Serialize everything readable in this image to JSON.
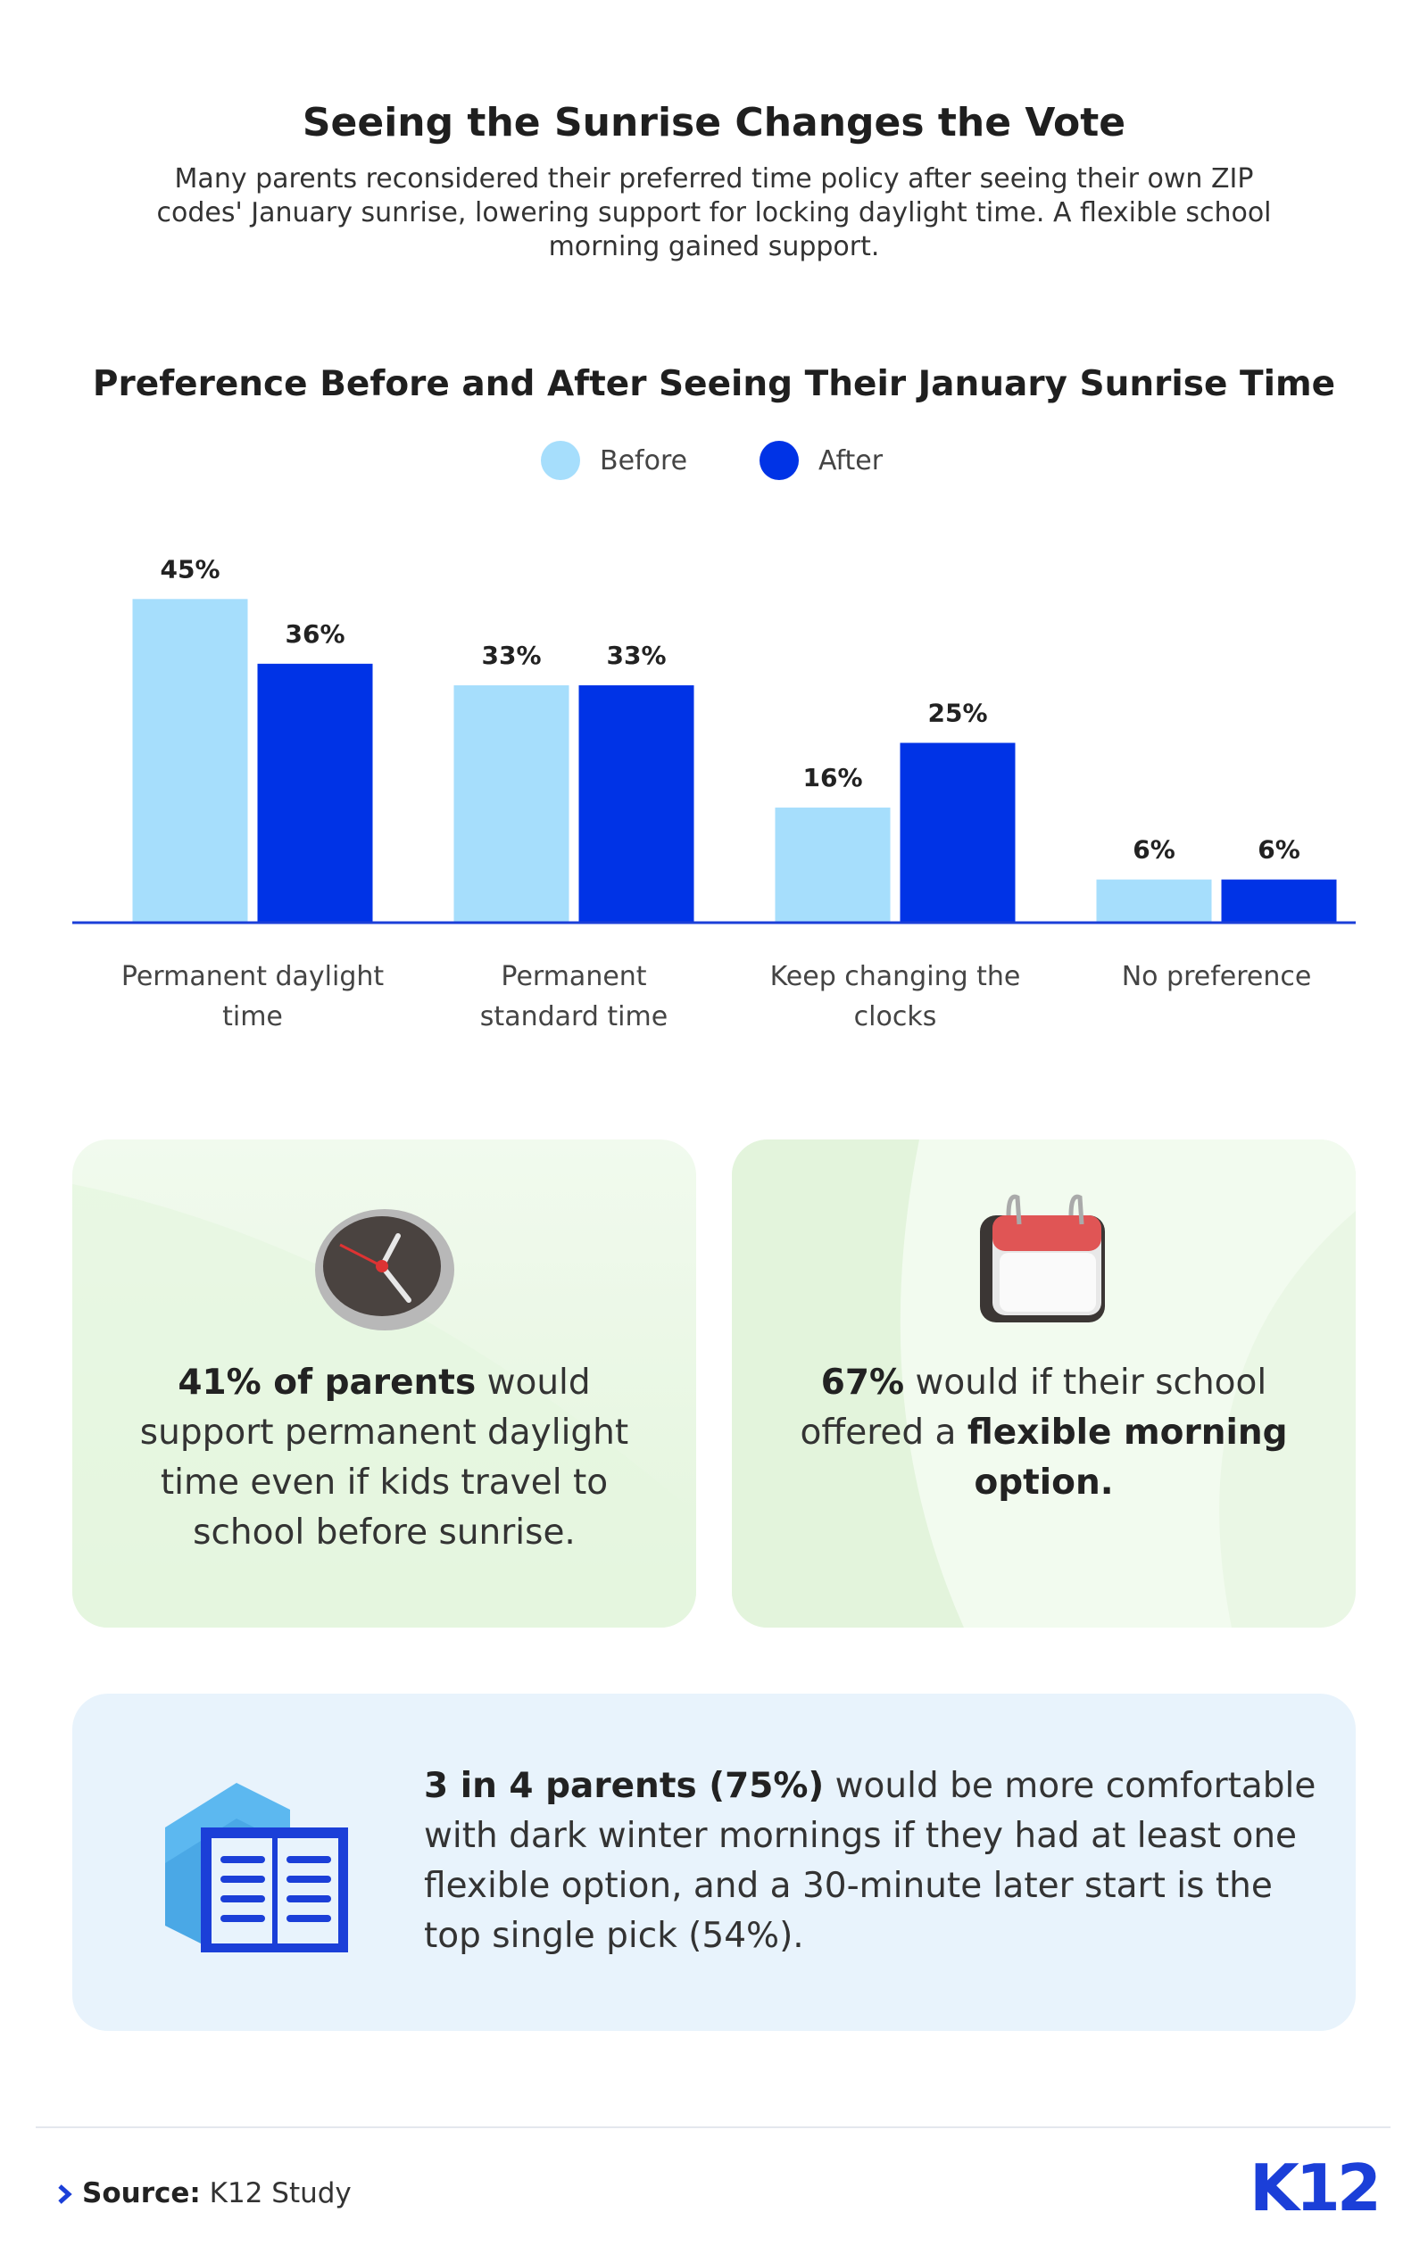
{
  "title": "Seeing the Sunrise Changes the Vote",
  "subtitle": "Many parents reconsidered their preferred time policy after seeing their own ZIP codes' January sunrise, lowering support for locking daylight time. A flexible school morning gained support.",
  "chart_data": {
    "type": "bar",
    "title": "Preference Before and After Seeing Their January Sunrise Time",
    "categories": [
      "Permanent daylight time",
      "Permanent standard time",
      "Keep changing the clocks",
      "No preference"
    ],
    "series": [
      {
        "name": "Before",
        "color": "#a6defc",
        "values": [
          45,
          33,
          16,
          6
        ],
        "value_labels": [
          "45%",
          "33%",
          "16%",
          "6%"
        ]
      },
      {
        "name": "After",
        "color": "#0033e6",
        "values": [
          36,
          33,
          25,
          6
        ],
        "value_labels": [
          "36%",
          "33%",
          "25%",
          "6%"
        ]
      }
    ],
    "ylim": [
      0,
      50
    ]
  },
  "cards": [
    {
      "parts": [
        {
          "text": "41% of parents",
          "bold": true
        },
        {
          "text": " would support permanent daylight time even if kids travel to school before sunrise.",
          "bold": false
        }
      ]
    },
    {
      "parts": [
        {
          "text": "67%",
          "bold": true
        },
        {
          "text": " would if their school offered a ",
          "bold": false
        },
        {
          "text": "flexible morning option.",
          "bold": true
        }
      ]
    },
    {
      "parts": [
        {
          "text": "3 in 4 parents (75%)",
          "bold": true
        },
        {
          "text": " would be more comfortable with dark winter mornings if they had at least one flexible option, and a 30-minute later start is the top single pick (54%).",
          "bold": false
        }
      ]
    }
  ],
  "source": {
    "label": "Source:",
    "text": "K12 Study"
  },
  "logo": "K12"
}
